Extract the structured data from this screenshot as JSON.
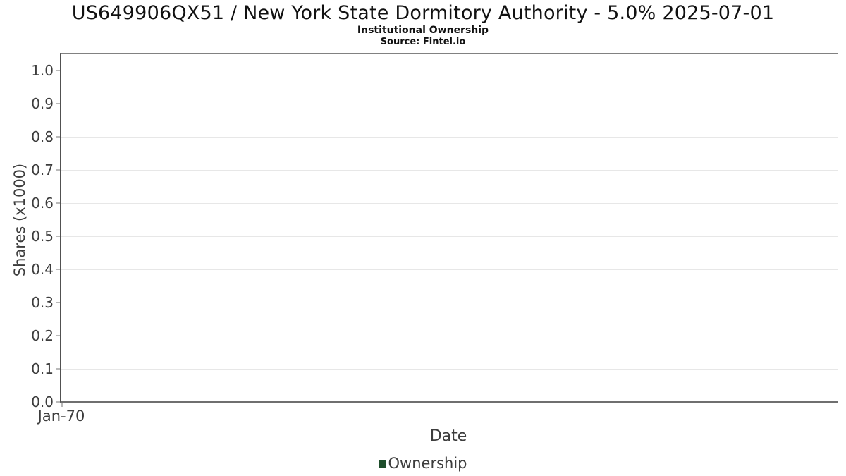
{
  "header": {
    "title": "US649906QX51 / New York State Dormitory Authority - 5.0% 2025-07-01",
    "subtitle": "Institutional Ownership",
    "source": "Source: Fintel.io"
  },
  "chart_data": {
    "type": "line",
    "title": "US649906QX51 / New York State Dormitory Authority - 5.0% 2025-07-01",
    "subtitle": "Institutional Ownership",
    "source": "Source: Fintel.io",
    "xlabel": "Date",
    "ylabel": "Shares (x1000)",
    "ylim": [
      0.0,
      1.0
    ],
    "ytick_step": 0.1,
    "yticks": [
      "1.0",
      "0.9",
      "0.8",
      "0.7",
      "0.6",
      "0.5",
      "0.4",
      "0.3",
      "0.2",
      "0.1",
      "0.0"
    ],
    "xticks": [
      "Jan-70"
    ],
    "grid": "horizontal",
    "legend_position": "bottom-center",
    "series": [
      {
        "name": "Ownership",
        "color": "#1e4d2b",
        "x": [],
        "values": []
      }
    ]
  },
  "colors": {
    "plot_border": "#818181",
    "axis_line": "#515151",
    "gridline": "#e7e7e7",
    "tick_text": "#3d3d3d",
    "title_text": "#111111",
    "legend_green": "#1e4d2b"
  }
}
